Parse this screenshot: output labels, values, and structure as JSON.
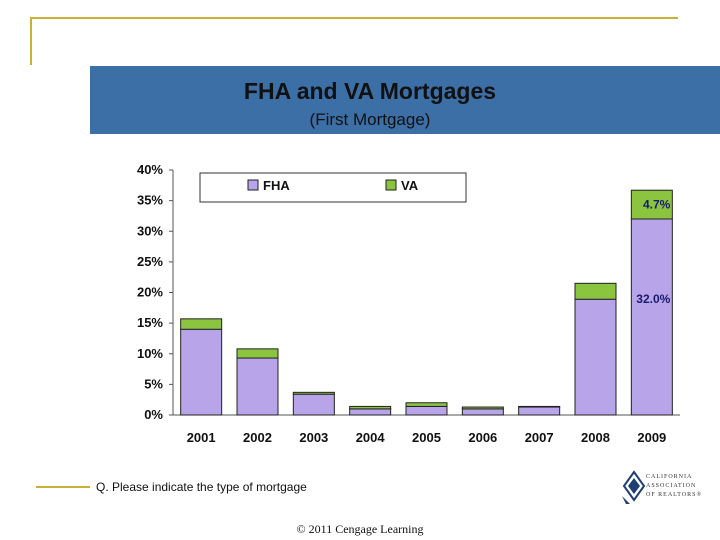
{
  "slide": {
    "title": "FHA and VA Mortgages",
    "subtitle": "(First Mortgage)",
    "question": "Q. Please indicate the type of mortgage",
    "copyright": "© 2011 Cengage Learning",
    "logo_lines": [
      "CALIFORNIA",
      "ASSOCIATION",
      "OF REALTORS®"
    ]
  },
  "colors": {
    "fha": "#b8a4e8",
    "va": "#8bc53f",
    "banner": "#3b6fa6",
    "frame": "#c9b037"
  },
  "chart_data": {
    "type": "bar",
    "stacked": true,
    "title": "FHA and VA Mortgages",
    "subtitle": "(First Mortgage)",
    "categories": [
      "2001",
      "2002",
      "2003",
      "2004",
      "2005",
      "2006",
      "2007",
      "2008",
      "2009"
    ],
    "series": [
      {
        "name": "FHA",
        "values": [
          14.0,
          9.3,
          3.4,
          1.0,
          1.4,
          1.0,
          1.3,
          18.9,
          32.0
        ]
      },
      {
        "name": "VA",
        "values": [
          1.7,
          1.5,
          0.3,
          0.4,
          0.6,
          0.3,
          0.1,
          2.6,
          4.7
        ]
      }
    ],
    "ylim": [
      0,
      40
    ],
    "yticks": [
      "0%",
      "5%",
      "10%",
      "15%",
      "20%",
      "25%",
      "30%",
      "35%",
      "40%"
    ],
    "grid": false,
    "legend": "top-left",
    "annotations": [
      {
        "category": "2009",
        "series": "VA",
        "label": "4.7%"
      },
      {
        "category": "2009",
        "series": "FHA",
        "label": "32.0%"
      }
    ],
    "xlabel": "",
    "ylabel": ""
  }
}
